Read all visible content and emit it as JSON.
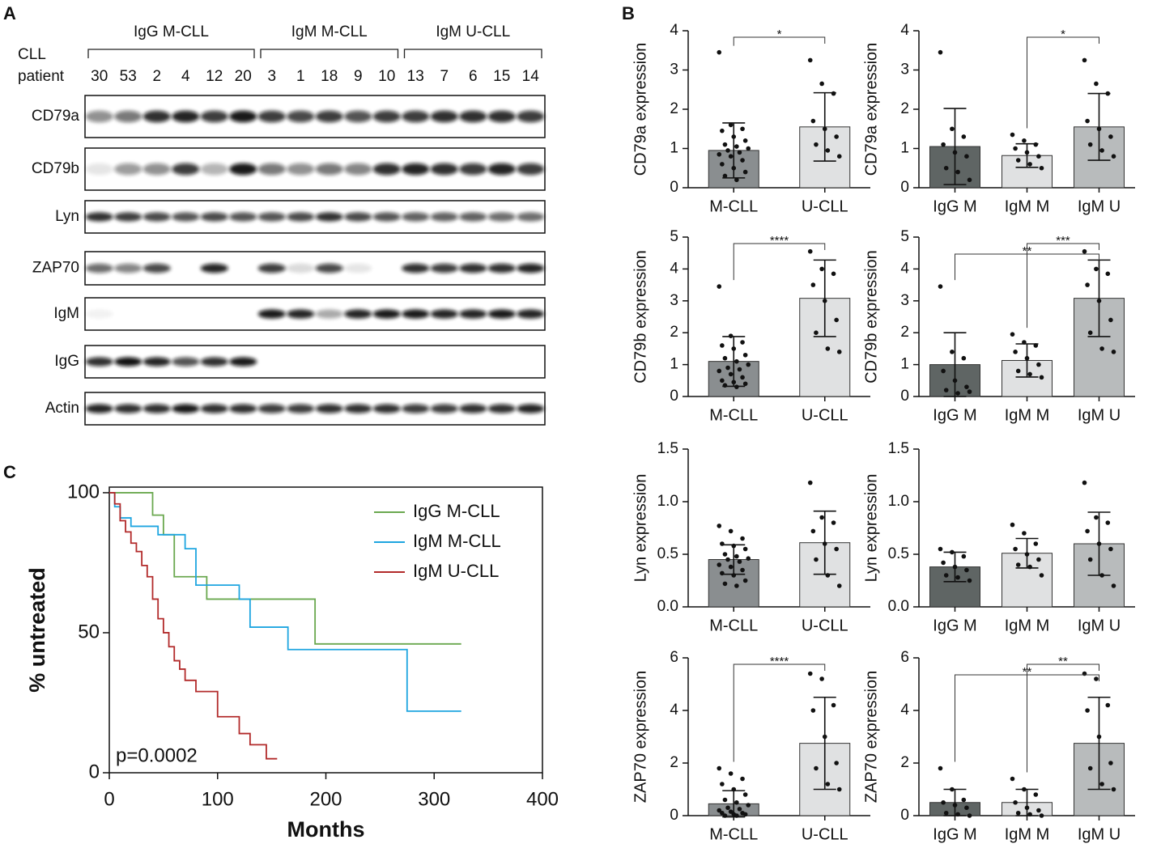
{
  "panel_labels": [
    "A",
    "B",
    "C"
  ],
  "blot": {
    "patient_header": [
      "CLL",
      "patient"
    ],
    "groups": [
      {
        "name": "IgG M-CLL",
        "patients": [
          "30",
          "53",
          "2",
          "4",
          "12",
          "20"
        ]
      },
      {
        "name": "IgM M-CLL",
        "patients": [
          "3",
          "1",
          "18",
          "9",
          "10"
        ]
      },
      {
        "name": "IgM U-CLL",
        "patients": [
          "13",
          "7",
          "6",
          "15",
          "14"
        ]
      }
    ],
    "rows": [
      {
        "protein": "CD79a",
        "intensity": [
          0.45,
          0.55,
          0.85,
          0.9,
          0.8,
          0.95,
          0.8,
          0.75,
          0.8,
          0.7,
          0.8,
          0.8,
          0.85,
          0.85,
          0.85,
          0.8
        ]
      },
      {
        "protein": "CD79b",
        "intensity": [
          0.1,
          0.4,
          0.45,
          0.8,
          0.3,
          0.95,
          0.55,
          0.45,
          0.55,
          0.5,
          0.85,
          0.9,
          0.85,
          0.8,
          0.9,
          0.8
        ]
      },
      {
        "protein": "Lyn",
        "intensity": [
          0.85,
          0.8,
          0.75,
          0.7,
          0.75,
          0.7,
          0.7,
          0.75,
          0.85,
          0.75,
          0.7,
          0.65,
          0.65,
          0.65,
          0.6,
          0.6
        ]
      },
      {
        "protein": "ZAP70",
        "intensity": [
          0.6,
          0.5,
          0.75,
          0,
          0.9,
          0,
          0.8,
          0.15,
          0.75,
          0.1,
          0,
          0.85,
          0.8,
          0.85,
          0.85,
          0.9
        ]
      },
      {
        "protein": "IgM",
        "intensity": [
          0.05,
          0,
          0,
          0,
          0,
          0,
          0.95,
          0.9,
          0.35,
          0.9,
          0.95,
          0.95,
          0.9,
          0.9,
          0.95,
          0.9
        ]
      },
      {
        "protein": "IgG",
        "intensity": [
          0.85,
          0.98,
          0.9,
          0.7,
          0.85,
          0.95,
          0,
          0,
          0,
          0,
          0,
          0,
          0,
          0,
          0,
          0
        ]
      },
      {
        "protein": "Actin",
        "intensity": [
          0.9,
          0.85,
          0.85,
          0.95,
          0.85,
          0.85,
          0.8,
          0.8,
          0.85,
          0.85,
          0.85,
          0.8,
          0.8,
          0.85,
          0.85,
          0.9
        ]
      }
    ]
  },
  "chart_data": [
    {
      "type": "bar",
      "ylabel": "CD79a expression",
      "categories": [
        "M-CLL",
        "U-CLL"
      ],
      "colors": [
        "#8a8e90",
        "#e0e1e2"
      ],
      "values": [
        0.95,
        1.55
      ],
      "errors": [
        0.7,
        0.87
      ],
      "points": [
        [
          3.45,
          1.6,
          1.5,
          1.45,
          1.3,
          1.2,
          1.1,
          1.05,
          1.0,
          0.95,
          0.9,
          0.85,
          0.8,
          0.7,
          0.6,
          0.5,
          0.4,
          0.3,
          0.2
        ],
        [
          3.25,
          2.65,
          2.4,
          1.7,
          1.5,
          1.3,
          1.1,
          0.95,
          0.8
        ]
      ],
      "ylim": [
        0,
        4
      ],
      "yticks": [
        0,
        1,
        2,
        3,
        4
      ],
      "comparisons": [
        {
          "groups": [
            0,
            1
          ],
          "label": "*"
        }
      ]
    },
    {
      "type": "bar",
      "ylabel": "CD79a expression",
      "categories": [
        "IgG M",
        "IgM M",
        "IgM U"
      ],
      "colors": [
        "#5f6564",
        "#e0e1e2",
        "#b8bbbc"
      ],
      "values": [
        1.05,
        0.82,
        1.55
      ],
      "errors": [
        0.97,
        0.3,
        0.85
      ],
      "points": [
        [
          3.45,
          1.5,
          1.3,
          1.1,
          0.9,
          0.8,
          0.5,
          0.4,
          0.2
        ],
        [
          1.35,
          1.2,
          1.1,
          1.0,
          0.9,
          0.8,
          0.7,
          0.6,
          0.5
        ],
        [
          3.25,
          2.65,
          2.4,
          1.7,
          1.5,
          1.3,
          1.1,
          0.95,
          0.8
        ]
      ],
      "ylim": [
        0,
        4
      ],
      "yticks": [
        0,
        1,
        2,
        3,
        4
      ],
      "comparisons": [
        {
          "groups": [
            1,
            2
          ],
          "label": "*"
        }
      ]
    },
    {
      "type": "bar",
      "ylabel": "CD79b expression",
      "categories": [
        "M-CLL",
        "U-CLL"
      ],
      "colors": [
        "#8a8e90",
        "#e0e1e2"
      ],
      "values": [
        1.1,
        3.08
      ],
      "errors": [
        0.78,
        1.2
      ],
      "points": [
        [
          3.45,
          1.9,
          1.7,
          1.6,
          1.5,
          1.3,
          1.2,
          1.1,
          1.0,
          0.9,
          0.85,
          0.8,
          0.7,
          0.6,
          0.5,
          0.45,
          0.4,
          0.35,
          0.3
        ],
        [
          4.55,
          4.0,
          3.85,
          3.5,
          3.0,
          2.4,
          2.0,
          1.5,
          1.4
        ]
      ],
      "ylim": [
        0,
        5
      ],
      "yticks": [
        0,
        1,
        2,
        3,
        4,
        5
      ],
      "comparisons": [
        {
          "groups": [
            0,
            1
          ],
          "label": "****"
        }
      ]
    },
    {
      "type": "bar",
      "ylabel": "CD79b expression",
      "categories": [
        "IgG M",
        "IgM M",
        "IgM U"
      ],
      "colors": [
        "#5f6564",
        "#e0e1e2",
        "#b8bbbc"
      ],
      "values": [
        1.0,
        1.13,
        3.08
      ],
      "errors": [
        1.0,
        0.52,
        1.2
      ],
      "points": [
        [
          3.45,
          1.4,
          1.2,
          0.8,
          0.5,
          0.3,
          0.2,
          0.1,
          0.15
        ],
        [
          1.95,
          1.7,
          1.6,
          1.4,
          1.2,
          1.0,
          0.8,
          0.7,
          0.6
        ],
        [
          4.55,
          4.0,
          3.85,
          3.5,
          3.0,
          2.4,
          2.0,
          1.5,
          1.4
        ]
      ],
      "ylim": [
        0,
        5
      ],
      "yticks": [
        0,
        1,
        2,
        3,
        4,
        5
      ],
      "comparisons": [
        {
          "groups": [
            0,
            2
          ],
          "label": "**"
        },
        {
          "groups": [
            1,
            2
          ],
          "label": "***"
        }
      ]
    },
    {
      "type": "bar",
      "ylabel": "Lyn expression",
      "categories": [
        "M-CLL",
        "U-CLL"
      ],
      "colors": [
        "#8a8e90",
        "#e0e1e2"
      ],
      "values": [
        0.45,
        0.61
      ],
      "errors": [
        0.14,
        0.3
      ],
      "points": [
        [
          0.77,
          0.72,
          0.65,
          0.6,
          0.58,
          0.55,
          0.5,
          0.48,
          0.46,
          0.45,
          0.43,
          0.4,
          0.38,
          0.35,
          0.32,
          0.3,
          0.25,
          0.22,
          0.2
        ],
        [
          1.18,
          0.85,
          0.8,
          0.72,
          0.6,
          0.55,
          0.45,
          0.3,
          0.2
        ]
      ],
      "ylim": [
        0,
        1.5
      ],
      "yticks": [
        {
          "value": 0,
          "label": "0.0"
        },
        {
          "value": 0.5,
          "label": "0.5"
        },
        {
          "value": 1,
          "label": "1.0"
        },
        {
          "value": 1.5,
          "label": "1.5"
        }
      ],
      "comparisons": []
    },
    {
      "type": "bar",
      "ylabel": "Lyn expression",
      "categories": [
        "IgG M",
        "IgM M",
        "IgM U"
      ],
      "colors": [
        "#5f6564",
        "#e0e1e2",
        "#b8bbbc"
      ],
      "values": [
        0.38,
        0.51,
        0.6
      ],
      "errors": [
        0.14,
        0.14,
        0.3
      ],
      "points": [
        [
          0.55,
          0.52,
          0.48,
          0.42,
          0.38,
          0.35,
          0.3,
          0.28,
          0.25
        ],
        [
          0.78,
          0.7,
          0.6,
          0.55,
          0.5,
          0.45,
          0.4,
          0.38,
          0.3
        ],
        [
          1.18,
          0.85,
          0.8,
          0.72,
          0.6,
          0.55,
          0.45,
          0.3,
          0.2
        ]
      ],
      "ylim": [
        0,
        1.5
      ],
      "yticks": [
        {
          "value": 0,
          "label": "0.0"
        },
        {
          "value": 0.5,
          "label": "0.5"
        },
        {
          "value": 1,
          "label": "1.0"
        },
        {
          "value": 1.5,
          "label": "1.5"
        }
      ],
      "comparisons": []
    },
    {
      "type": "bar",
      "ylabel": "ZAP70 expression",
      "categories": [
        "M-CLL",
        "U-CLL"
      ],
      "colors": [
        "#8a8e90",
        "#e0e1e2"
      ],
      "values": [
        0.45,
        2.75
      ],
      "errors": [
        0.5,
        1.75
      ],
      "points": [
        [
          1.8,
          1.6,
          1.4,
          1.2,
          1.0,
          0.8,
          0.6,
          0.5,
          0.4,
          0.3,
          0.25,
          0.2,
          0.15,
          0.1,
          0.1,
          0.05,
          0.05,
          0.0,
          0.0
        ],
        [
          5.4,
          5.2,
          4.2,
          4.0,
          3.0,
          2.0,
          1.8,
          1.2,
          1.0
        ]
      ],
      "ylim": [
        0,
        6
      ],
      "yticks": [
        0,
        2,
        4,
        6
      ],
      "comparisons": [
        {
          "groups": [
            0,
            1
          ],
          "label": "****"
        }
      ]
    },
    {
      "type": "bar",
      "ylabel": "ZAP70 expression",
      "categories": [
        "IgG M",
        "IgM M",
        "IgM U"
      ],
      "colors": [
        "#5f6564",
        "#e0e1e2",
        "#b8bbbc"
      ],
      "values": [
        0.5,
        0.5,
        2.75
      ],
      "errors": [
        0.5,
        0.5,
        1.75
      ],
      "points": [
        [
          1.8,
          1.0,
          0.6,
          0.5,
          0.4,
          0.3,
          0.1,
          0.05,
          0.0
        ],
        [
          1.4,
          1.0,
          0.8,
          0.5,
          0.3,
          0.2,
          0.1,
          0.05,
          0.0
        ],
        [
          5.4,
          5.2,
          4.2,
          4.0,
          3.0,
          2.0,
          1.8,
          1.2,
          1.0
        ]
      ],
      "ylim": [
        0,
        6
      ],
      "yticks": [
        0,
        2,
        4,
        6
      ],
      "comparisons": [
        {
          "groups": [
            0,
            2
          ],
          "label": "**"
        },
        {
          "groups": [
            1,
            2
          ],
          "label": "**"
        }
      ]
    },
    {
      "type": "line",
      "xlabel": "Months",
      "ylabel": "% untreated",
      "annotation": "p=0.0002",
      "xlim": [
        0,
        400
      ],
      "xticks": [
        0,
        100,
        200,
        300,
        400
      ],
      "ylim": [
        0,
        102
      ],
      "yticks": [
        0,
        50,
        100
      ],
      "series": [
        {
          "name": "IgG M-CLL",
          "color": "#6aa84f",
          "x": [
            0,
            30,
            40,
            50,
            60,
            90,
            120,
            190,
            325
          ],
          "values": [
            100,
            100,
            92,
            85,
            70,
            62,
            62,
            46,
            46
          ]
        },
        {
          "name": "IgM M-CLL",
          "color": "#1ea5e0",
          "x": [
            0,
            5,
            10,
            20,
            45,
            70,
            80,
            120,
            130,
            165,
            275,
            325
          ],
          "values": [
            100,
            95,
            91,
            88,
            85,
            80,
            67,
            62,
            52,
            44,
            22,
            22
          ]
        },
        {
          "name": "IgM U-CLL",
          "color": "#b22a2a",
          "x": [
            0,
            5,
            10,
            15,
            20,
            25,
            30,
            35,
            40,
            45,
            50,
            55,
            60,
            65,
            70,
            80,
            100,
            120,
            130,
            145,
            155
          ],
          "values": [
            100,
            96,
            90,
            86,
            82,
            79,
            74,
            70,
            62,
            55,
            50,
            45,
            40,
            37,
            33,
            29,
            20,
            14,
            10,
            5,
            5
          ]
        }
      ]
    }
  ]
}
